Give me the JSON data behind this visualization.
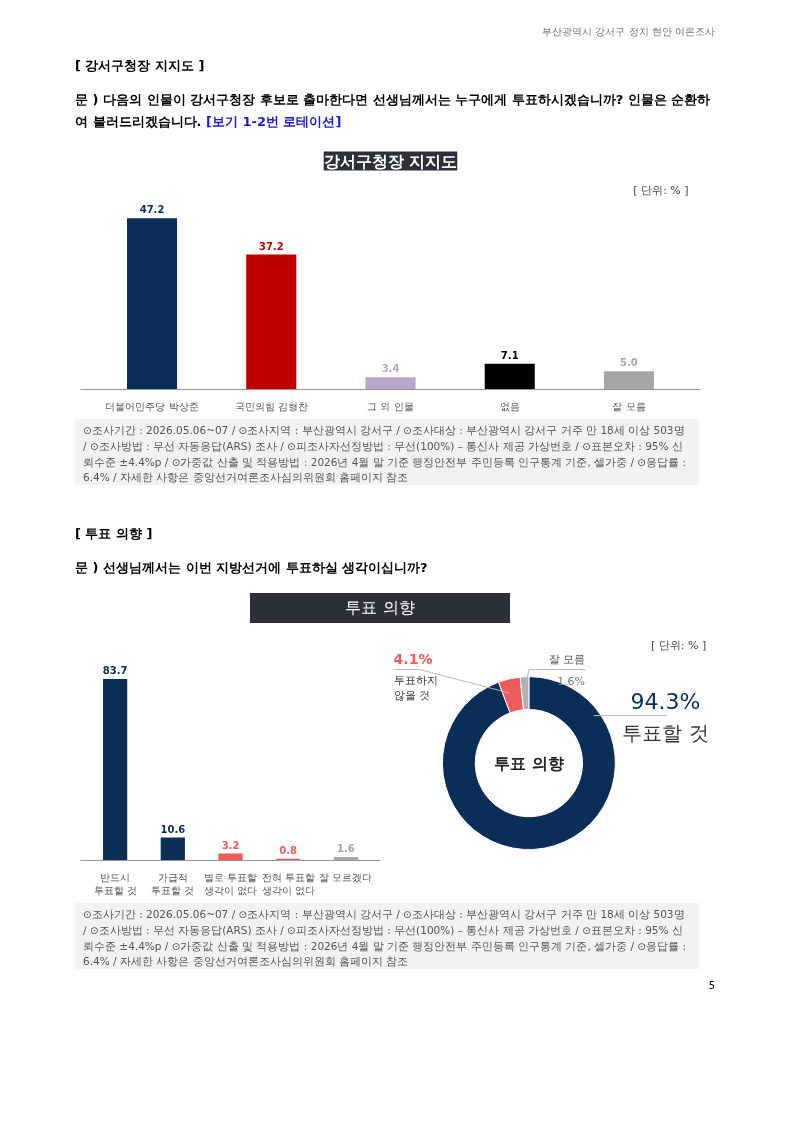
{
  "chart_data": [
    {
      "type": "bar",
      "title": "강서구청장 지지도",
      "categories": [
        "더불어민주당 박상준",
        "국민의힘 김형찬",
        "그 외 인물",
        "없음",
        "잘 모름"
      ],
      "values": [
        47.2,
        37.2,
        3.4,
        7.1,
        5.0
      ],
      "colors": [
        "#0b2e59",
        "#c00000",
        "#b9a6cc",
        "#000000",
        "#a6a6a6"
      ],
      "value_labels": [
        "47.2",
        "37.2",
        "3.4",
        "7.1",
        "5.0"
      ],
      "annotations": [
        "부산광역시 강서구 정치 현안 여론조사",
        "[ 강서구청장 지지도 ]",
        "문 )  다음의 인물이 강서구청장 후보로 출마한다면 선생님께서는 누구에게 투표하시겠습니까? 인물은 순환하여 불러드리겠습니다. [보기 1-2번 로테이션]",
        "[ 단위: % ]",
        "⊙조사기간 : 2026.05.06~07 / ⊙조사지역 : 부산광역시 강서구 / ⊙조사대상 : 부산광역시 강서구 거주 만 18세 이상 503명 / ⊙조사방법 : 무선 자동응답(ARS) 조사 / ⊙피조사자선정방법 : 무선(100%) – 통신사 제공 가상번호 / ⊙표본오차 : 95% 신뢰수준 ±4.4%p / ⊙가중값 산출 및 적용방법 : 2026년 4월 말 기준 행정안전부 주민등록 인구통계 기준, 셀가중 / ⊙응답률 : 6.4% / 자세한 사항은 중앙선거여론조사심의위원회 홈페이지 참조"
      ]
    },
    {
      "type": "bar",
      "title": "투표 의향",
      "categories": [
        "반드시\n투표할 것",
        "가급적\n투표할 것",
        "별로 투표할\n생각이 없다",
        "전혀 투표할\n생각이 없다",
        "잘 모르겠다"
      ],
      "values": [
        83.7,
        10.6,
        3.2,
        0.8,
        1.6
      ],
      "colors": [
        "#0b2e59",
        "#0b2e59",
        "#f05a5a",
        "#f05a5a",
        "#a6a6a6"
      ],
      "data_labels": true,
      "annotations": [
        "[ 투표 의향 ]",
        "문 )  선생님께서는 이번 지방선거에 투표하실 생각이십니까?",
        "⊙조사기간 : 2026.05.06~07 / ⊙조사지역 : 부산광역시 강서구 / ⊙조사대상 : 부산광역시 강서구 거주 만 18세 이상 503명 / ⊙조사방법 : 무선 자동응답(ARS) 조사 / ⊙피조사자선정방법 : 무선(100%) – 통신사 제공 가상번호 / ⊙표본오차 : 95% 신뢰수준 ±4.4%p / ⊙가중값 산출 및 적용방법 : 2026년 4월 말 기준 행정안전부 주민등록 인구통계 기준, 셀가중 / ⊙응답률 : 6.4% / 자세한 사항은 중앙선거여론조사심의위원회 홈페이지 참조"
      ]
    },
    {
      "type": "donut",
      "categories": [
        "투표할 것",
        "투표하지\n않을 것",
        "잘 모름"
      ],
      "values": [
        94.3,
        4.1,
        1.6
      ],
      "colors": [
        "#0b2e59",
        "#f05a5a",
        "#b0b0b0"
      ],
      "value_labels": [
        "94.3%",
        "4.1%",
        "1.6%"
      ],
      "annotations": [
        "투표 의향",
        "[ 단위: % ]",
        "5"
      ]
    }
  ]
}
